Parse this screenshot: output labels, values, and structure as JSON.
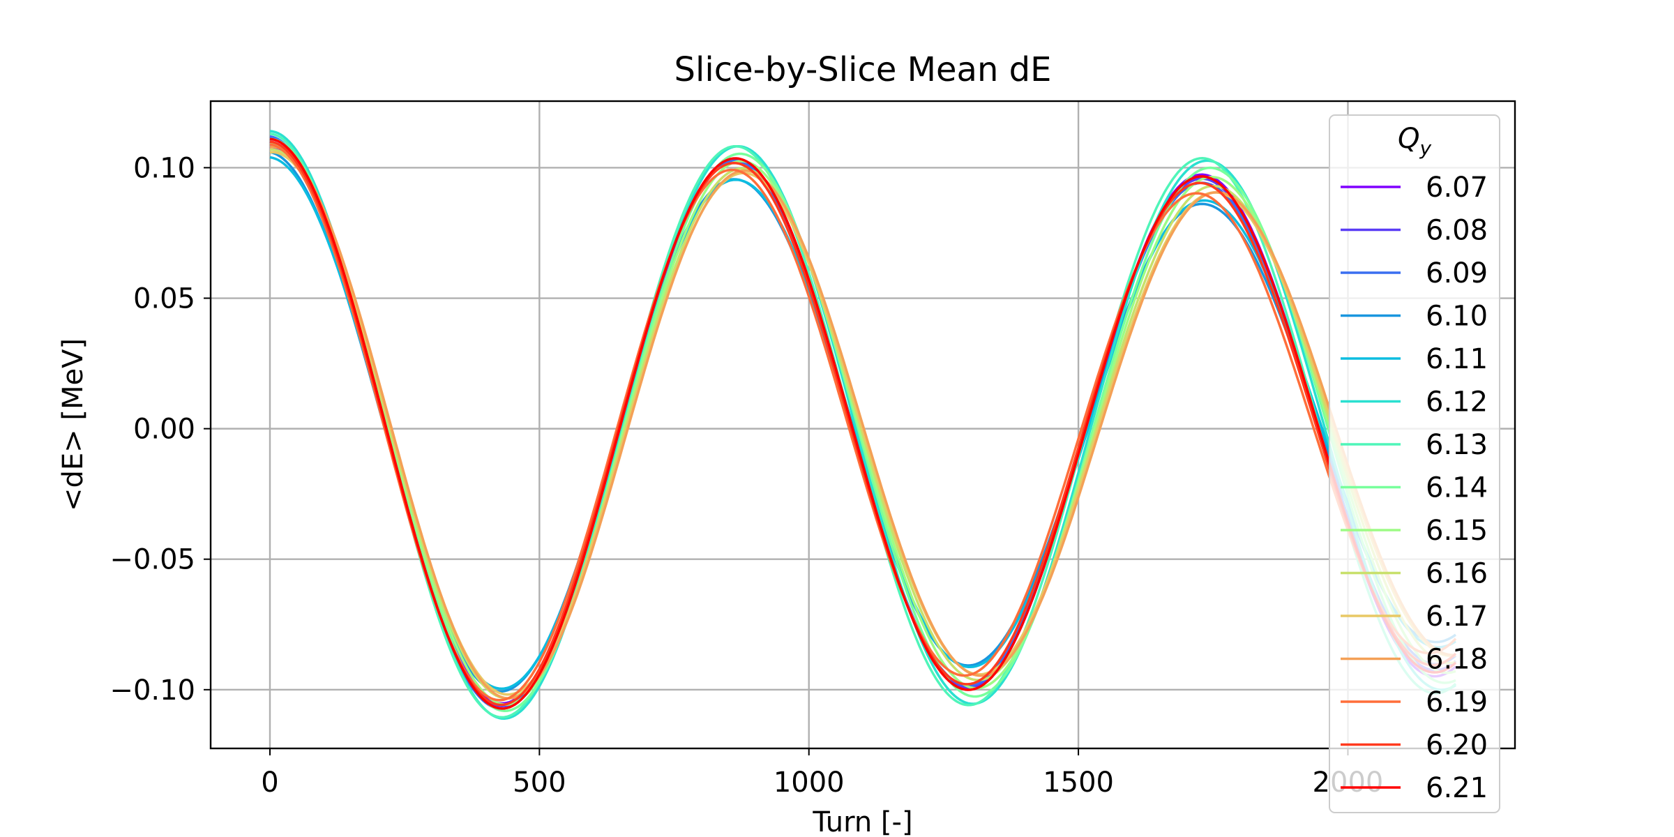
{
  "chart_data": {
    "type": "line",
    "title": "Slice-by-Slice Mean dE",
    "xlabel": "Turn [-]",
    "ylabel": "<dE> [MeV]",
    "xlim": [
      -110,
      2310
    ],
    "ylim": [
      -0.1225,
      0.1255
    ],
    "xticks": [
      0,
      500,
      1000,
      1500,
      2000
    ],
    "xtick_labels": [
      "0",
      "500",
      "1000",
      "1500",
      "2000"
    ],
    "yticks": [
      -0.1,
      -0.05,
      0.0,
      0.05,
      0.1
    ],
    "ytick_labels": [
      "−0.10",
      "−0.05",
      "0.00",
      "0.05",
      "0.10"
    ],
    "grid": true,
    "legend": {
      "title": "Q",
      "title_subscript": "y",
      "placement": "right"
    },
    "x_range": [
      0,
      2200
    ],
    "series": [
      {
        "name": "6.07",
        "color": "#8000ff",
        "a0": 0.108,
        "decay": 6e-05,
        "period": 865,
        "phase": 0.0
      },
      {
        "name": "6.08",
        "color": "#5a3df5",
        "a0": 0.11,
        "decay": 8e-05,
        "period": 866,
        "phase": 0.01
      },
      {
        "name": "6.09",
        "color": "#3a6ef0",
        "a0": 0.112,
        "decay": 0.0001,
        "period": 867,
        "phase": 0.02
      },
      {
        "name": "6.10",
        "color": "#1996de",
        "a0": 0.106,
        "decay": 0.00012,
        "period": 868,
        "phase": 0.03
      },
      {
        "name": "6.11",
        "color": "#0dbde0",
        "a0": 0.104,
        "decay": 0.0001,
        "period": 869,
        "phase": 0.02
      },
      {
        "name": "6.12",
        "color": "#2ae0d0",
        "a0": 0.114,
        "decay": 6e-05,
        "period": 870,
        "phase": 0.0
      },
      {
        "name": "6.13",
        "color": "#4ff5b9",
        "a0": 0.113,
        "decay": 5e-05,
        "period": 866,
        "phase": 0.01
      },
      {
        "name": "6.14",
        "color": "#78ff9c",
        "a0": 0.111,
        "decay": 6e-05,
        "period": 872,
        "phase": -0.01
      },
      {
        "name": "6.15",
        "color": "#9dfb85",
        "a0": 0.109,
        "decay": 7e-05,
        "period": 873,
        "phase": -0.02
      },
      {
        "name": "6.16",
        "color": "#c8e06b",
        "a0": 0.107,
        "decay": 8e-05,
        "period": 874,
        "phase": -0.03
      },
      {
        "name": "6.17",
        "color": "#e8c865",
        "a0": 0.106,
        "decay": 9e-05,
        "period": 875,
        "phase": -0.04
      },
      {
        "name": "6.18",
        "color": "#f4a056",
        "a0": 0.108,
        "decay": 0.0001,
        "period": 876,
        "phase": -0.05
      },
      {
        "name": "6.19",
        "color": "#ff6e3a",
        "a0": 0.109,
        "decay": 0.00011,
        "period": 862,
        "phase": 0.02
      },
      {
        "name": "6.20",
        "color": "#ff3a1e",
        "a0": 0.11,
        "decay": 9e-05,
        "period": 864,
        "phase": 0.01
      },
      {
        "name": "6.21",
        "color": "#ff0000",
        "a0": 0.111,
        "decay": 8e-05,
        "period": 865,
        "phase": 0.0
      }
    ]
  }
}
